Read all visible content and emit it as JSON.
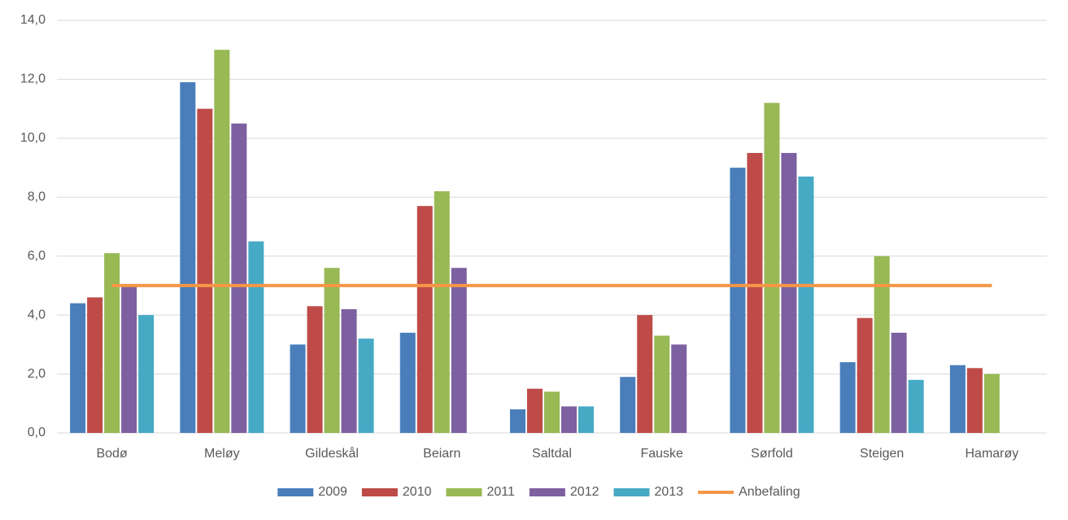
{
  "chart_data": {
    "type": "bar",
    "categories": [
      "Bodø",
      "Meløy",
      "Gildeskål",
      "Beiarn",
      "Saltdal",
      "Fauske",
      "Sørfold",
      "Steigen",
      "Hamarøy"
    ],
    "series": [
      {
        "name": "2009",
        "color": "#4a7ebb",
        "values": [
          4.4,
          11.9,
          3.0,
          3.4,
          0.8,
          1.9,
          9.0,
          2.4,
          2.3
        ]
      },
      {
        "name": "2010",
        "color": "#be4b48",
        "values": [
          4.6,
          11.0,
          4.3,
          7.7,
          1.5,
          4.0,
          9.5,
          3.9,
          2.2
        ]
      },
      {
        "name": "2011",
        "color": "#98b954",
        "values": [
          6.1,
          13.0,
          5.6,
          8.2,
          1.4,
          3.3,
          11.2,
          6.0,
          2.0
        ]
      },
      {
        "name": "2012",
        "color": "#7d60a0",
        "values": [
          5.0,
          10.5,
          4.2,
          5.6,
          0.9,
          3.0,
          9.5,
          3.4,
          null
        ]
      },
      {
        "name": "2013",
        "color": "#46aac5",
        "values": [
          4.0,
          6.5,
          3.2,
          null,
          0.9,
          null,
          8.7,
          1.8,
          null
        ]
      },
      {
        "name": "Anbefaling",
        "color": "#f79646",
        "type": "line",
        "values": [
          5,
          5,
          5,
          5,
          5,
          5,
          5,
          5,
          5
        ]
      }
    ],
    "ylim": [
      0,
      14
    ],
    "yticks": [
      {
        "value": 0,
        "label": "0,0"
      },
      {
        "value": 2,
        "label": "2,0"
      },
      {
        "value": 4,
        "label": "4,0"
      },
      {
        "value": 6,
        "label": "6,0"
      },
      {
        "value": 8,
        "label": "8,0"
      },
      {
        "value": 10,
        "label": "10,0"
      },
      {
        "value": 12,
        "label": "12,0"
      },
      {
        "value": 14,
        "label": "14,0"
      }
    ],
    "grid": true
  }
}
